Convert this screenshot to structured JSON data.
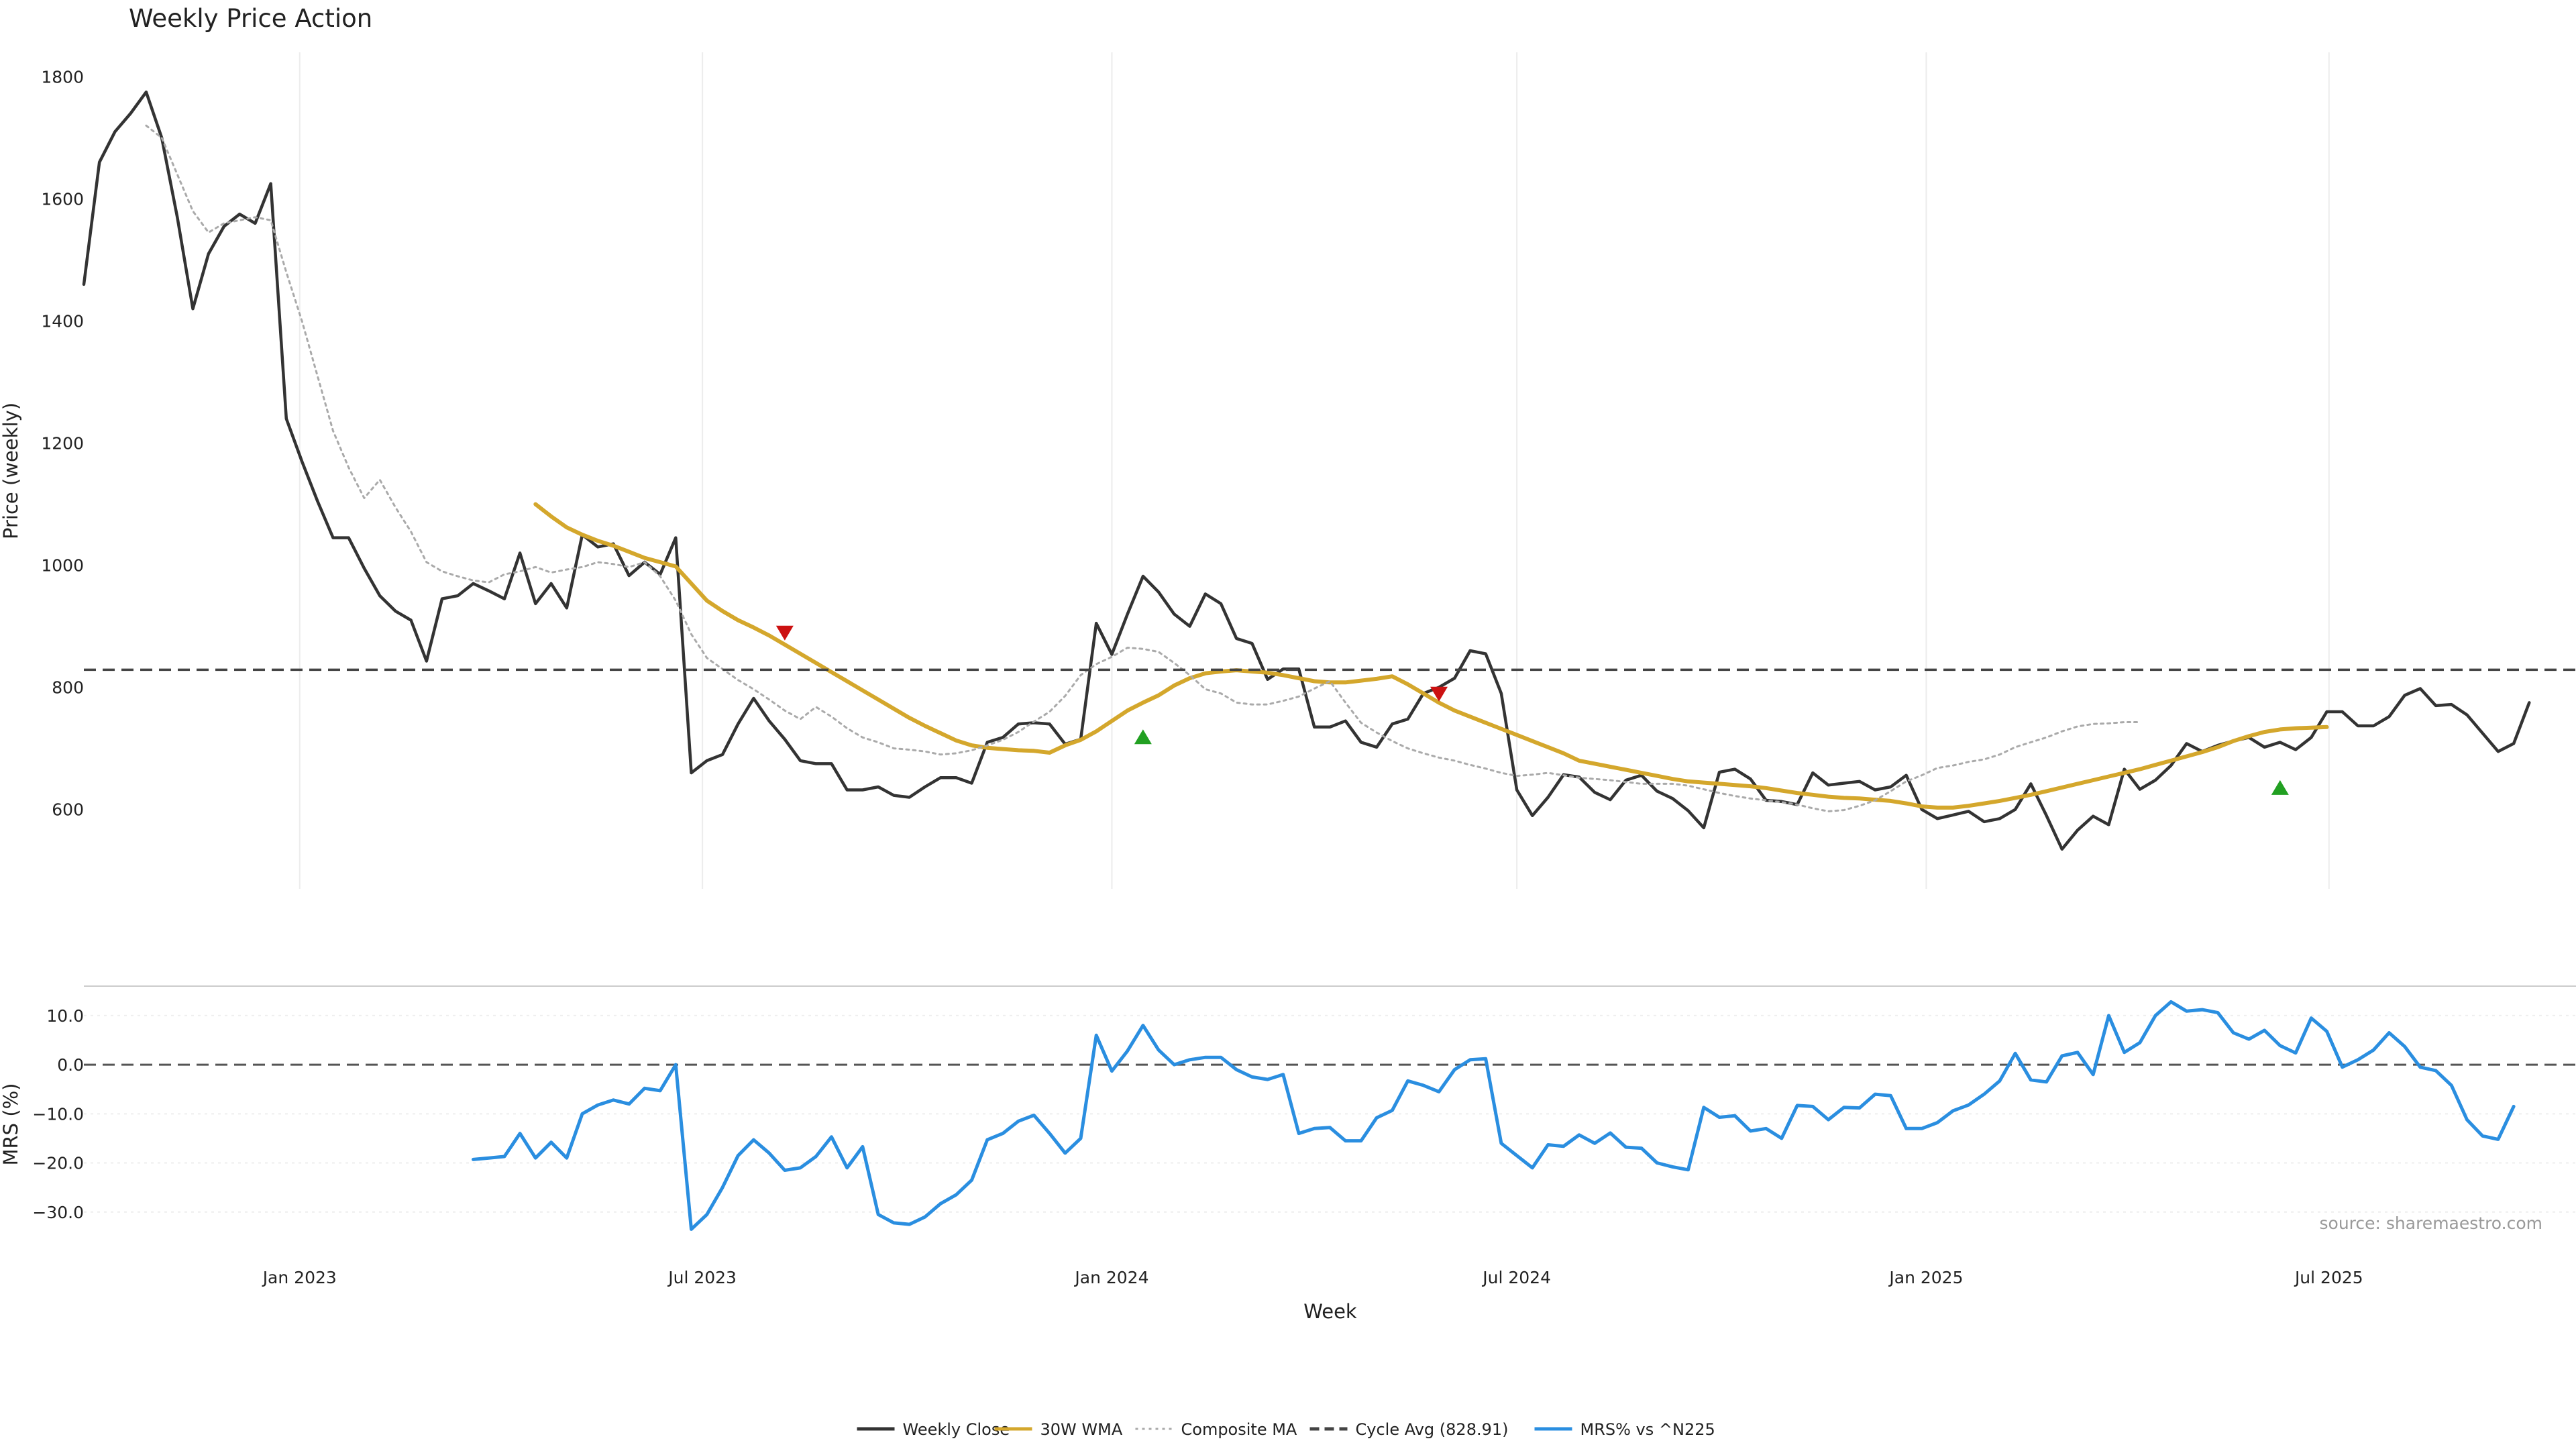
{
  "chart_data": {
    "type": "line",
    "title": "Weekly Price Action",
    "x_axis": {
      "label": "Week",
      "range": [
        "2022-09-26",
        "2025-10-20"
      ],
      "ticks": [
        {
          "label": "Jan 2023",
          "date": "2023-01-01"
        },
        {
          "label": "Jul 2023",
          "date": "2023-07-01"
        },
        {
          "label": "Jan 2024",
          "date": "2024-01-01"
        },
        {
          "label": "Jul 2024",
          "date": "2024-07-01"
        },
        {
          "label": "Jan 2025",
          "date": "2025-01-01"
        },
        {
          "label": "Jul 2025",
          "date": "2025-07-01"
        }
      ]
    },
    "price_panel": {
      "ylabel": "Price (weekly)",
      "ylim": [
        470,
        1840
      ],
      "ticks": [
        600,
        800,
        1000,
        1200,
        1400,
        1600,
        1800
      ],
      "grid": "vertical",
      "start_date": "2022-09-26",
      "step_days": 7,
      "series": [
        {
          "name": "Weekly Close",
          "color": "#333333",
          "style": "solid",
          "start_index": 0,
          "values": [
            1460,
            1660,
            1710,
            1740,
            1775,
            1700,
            1570,
            1420,
            1510,
            1555,
            1575,
            1560,
            1625,
            1240,
            1170,
            1105,
            1045,
            1045,
            995,
            950,
            925,
            910,
            843,
            945,
            950,
            970,
            958,
            945,
            1020,
            937,
            970,
            930,
            1050,
            1030,
            1035,
            983,
            1005,
            985,
            1045,
            660,
            680,
            690,
            740,
            782,
            745,
            715,
            680,
            675,
            675,
            632,
            632,
            637,
            623,
            620,
            637,
            652,
            652,
            643,
            710,
            718,
            740,
            742,
            740,
            707,
            715,
            905,
            854,
            920,
            982,
            956,
            920,
            900,
            953,
            937,
            880,
            872,
            813,
            830,
            830,
            735,
            735,
            745,
            710,
            702,
            740,
            748,
            790,
            800,
            815,
            860,
            855,
            790,
            632,
            590,
            620,
            657,
            653,
            628,
            616,
            648,
            656,
            630,
            618,
            598,
            570,
            661,
            666,
            650,
            615,
            613,
            608,
            660,
            640,
            643,
            646,
            632,
            637,
            656,
            600,
            585,
            591,
            597,
            580,
            585,
            600,
            642,
            590,
            535,
            566,
            589,
            575,
            666,
            633,
            648,
            672,
            708,
            695,
            705,
            712,
            718,
            702,
            710,
            698,
            718,
            760,
            760,
            737,
            737,
            752,
            787,
            798,
            770,
            772,
            755,
            725,
            695,
            708,
            775
          ]
        },
        {
          "name": "30W WMA",
          "color": "#d4a72c",
          "style": "solid",
          "start_index": 29,
          "values": [
            1100,
            1080,
            1062,
            1050,
            1040,
            1032,
            1022,
            1012,
            1005,
            998,
            970,
            942,
            925,
            910,
            898,
            885,
            870,
            855,
            840,
            825,
            810,
            795,
            780,
            765,
            750,
            737,
            725,
            713,
            705,
            701,
            699,
            697,
            696,
            693,
            705,
            714,
            728,
            745,
            762,
            775,
            787,
            803,
            815,
            823,
            826,
            828,
            826,
            824,
            820,
            815,
            810,
            808,
            808,
            811,
            814,
            818,
            805,
            790,
            775,
            762,
            752,
            742,
            732,
            722,
            712,
            702,
            692,
            680,
            675,
            670,
            665,
            660,
            655,
            650,
            646,
            644,
            642,
            640,
            638,
            635,
            631,
            627,
            624,
            621,
            619,
            618,
            616,
            614,
            610,
            605,
            603,
            603,
            606,
            610,
            614,
            619,
            624,
            630,
            636,
            642,
            648,
            654,
            660,
            666,
            673,
            680,
            687,
            694,
            702,
            712,
            720,
            727,
            731,
            733,
            734,
            735
          ]
        },
        {
          "name": "Composite MA",
          "color": "#aaaaaa",
          "style": "dotted",
          "start_index": 4,
          "values": [
            1720,
            1700,
            1640,
            1580,
            1545,
            1560,
            1565,
            1570,
            1565,
            1480,
            1400,
            1310,
            1220,
            1160,
            1110,
            1140,
            1095,
            1055,
            1005,
            990,
            982,
            975,
            972,
            985,
            990,
            997,
            988,
            993,
            997,
            1005,
            1002,
            997,
            1005,
            982,
            942,
            887,
            848,
            830,
            812,
            797,
            780,
            762,
            748,
            768,
            752,
            733,
            718,
            710,
            700,
            698,
            695,
            690,
            692,
            697,
            705,
            714,
            727,
            744,
            760,
            786,
            820,
            838,
            850,
            865,
            863,
            858,
            840,
            820,
            797,
            790,
            775,
            772,
            772,
            778,
            785,
            798,
            810,
            775,
            742,
            726,
            712,
            700,
            692,
            685,
            680,
            673,
            667,
            660,
            655,
            657,
            660,
            656,
            652,
            650,
            648,
            645,
            642,
            642,
            642,
            639,
            633,
            627,
            622,
            618,
            615,
            612,
            608,
            602,
            597,
            599,
            606,
            615,
            630,
            646,
            656,
            668,
            672,
            678,
            682,
            690,
            702,
            710,
            718,
            728,
            736,
            740,
            741,
            743,
            743
          ]
        },
        {
          "name": "Cycle Avg (828.91)",
          "color": "#444444",
          "style": "dashed",
          "constant": 828.91
        }
      ],
      "markers": [
        {
          "type": "sell",
          "date": "2023-08-07",
          "value": 890,
          "color": "#cc1111"
        },
        {
          "type": "buy",
          "date": "2024-01-15",
          "value": 718,
          "color": "#22a022"
        },
        {
          "type": "sell",
          "date": "2024-05-27",
          "value": 790,
          "color": "#cc1111"
        },
        {
          "type": "buy",
          "date": "2025-06-09",
          "value": 635,
          "color": "#22a022"
        }
      ]
    },
    "mrs_panel": {
      "ylabel": "MRS (%)",
      "ylim": [
        -37,
        16
      ],
      "ticks": [
        -30,
        -20,
        -10,
        0,
        10
      ],
      "tick_labels": [
        "−30.0",
        "−20.0",
        "−10.0",
        "0.0",
        "10.0"
      ],
      "grid": "horizontal",
      "zero_line": 0,
      "series": [
        {
          "name": "MRS% vs ^N225",
          "color": "#2a8ee0",
          "style": "solid",
          "start_index": 25,
          "values": [
            -19.3,
            -19.0,
            -18.7,
            -14.0,
            -19.0,
            -15.8,
            -19.0,
            -10.0,
            -8.2,
            -7.2,
            -8.0,
            -4.8,
            -5.3,
            0.0,
            -33.5,
            -30.5,
            -25.0,
            -18.5,
            -15.3,
            -18.0,
            -21.5,
            -21.0,
            -18.7,
            -14.7,
            -21.0,
            -16.7,
            -30.5,
            -32.2,
            -32.5,
            -31.0,
            -28.3,
            -26.5,
            -23.5,
            -15.3,
            -14.0,
            -11.5,
            -10.3,
            -14.0,
            -18.0,
            -15.0,
            6.0,
            -1.3,
            2.8,
            8.0,
            3.0,
            0.0,
            1.0,
            1.5,
            1.5,
            -1.0,
            -2.5,
            -3.0,
            -2.0,
            -14.0,
            -13.0,
            -12.8,
            -15.5,
            -15.5,
            -10.8,
            -9.3,
            -3.3,
            -4.2,
            -5.5,
            -1.0,
            1.0,
            1.2,
            -16.0,
            -18.5,
            -21.0,
            -16.3,
            -16.6,
            -14.3,
            -16.0,
            -13.9,
            -16.8,
            -17.0,
            -20.0,
            -20.8,
            -21.4,
            -8.7,
            -10.7,
            -10.4,
            -13.5,
            -13.0,
            -15.0,
            -8.3,
            -8.5,
            -11.2,
            -8.7,
            -8.8,
            -6.0,
            -6.3,
            -13.0,
            -13.0,
            -11.8,
            -9.4,
            -8.2,
            -6.0,
            -3.3,
            2.3,
            -3.1,
            -3.5,
            1.8,
            2.5,
            -2.0,
            10.0,
            2.5,
            4.5,
            10.0,
            12.8,
            10.9,
            11.2,
            10.6,
            6.5,
            5.2,
            7.0,
            3.9,
            2.4,
            9.5,
            6.8,
            -0.5,
            1.0,
            3.0,
            6.5,
            3.7,
            -0.5,
            -1.2,
            -4.2,
            -11.2,
            -14.5,
            -15.2,
            -8.5
          ]
        }
      ]
    },
    "legend": {
      "placement": "bottom-center",
      "entries": [
        {
          "label": "Weekly Close",
          "color": "#333333",
          "style": "solid"
        },
        {
          "label": "30W WMA",
          "color": "#d4a72c",
          "style": "solid"
        },
        {
          "label": "Composite MA",
          "color": "#aaaaaa",
          "style": "dotted"
        },
        {
          "label": "Cycle Avg (828.91)",
          "color": "#444444",
          "style": "dashed"
        },
        {
          "label": "MRS% vs ^N225",
          "color": "#2a8ee0",
          "style": "solid"
        }
      ]
    },
    "annotation": "source: sharemaestro.com"
  }
}
